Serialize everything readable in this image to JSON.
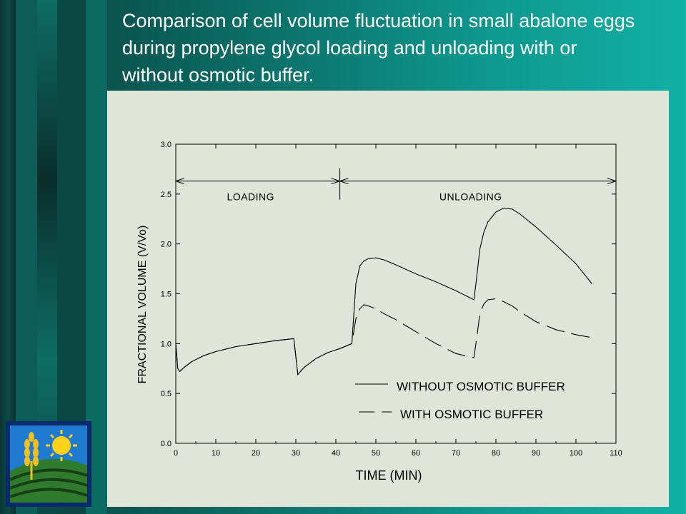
{
  "slide": {
    "title": "Comparison of cell volume fluctuation in small abalone eggs during propylene glycol loading and unloading with or without osmotic buffer."
  },
  "logo": {
    "icon": "agriculture-logo-icon"
  },
  "colors": {
    "background_dark": "#0d3d3a",
    "background_light": "#12b0a5",
    "panel": "#dfe5d9",
    "ink": "#000000"
  },
  "chart_data": {
    "type": "line",
    "title": "",
    "xlabel": "TIME (MIN)",
    "ylabel": "FRACTIONAL VOLUME  (V/Vo)",
    "xlim": [
      0,
      110
    ],
    "ylim": [
      0,
      3.0
    ],
    "xticks": [
      0,
      10,
      20,
      30,
      40,
      50,
      60,
      70,
      80,
      90,
      100,
      110
    ],
    "yticks": [
      "0.0",
      "0.5",
      "1.0",
      "1.5",
      "2.0",
      "2.5",
      "3.0"
    ],
    "grid": false,
    "legend_position": "bottom-right",
    "phases": [
      {
        "label": "LOADING",
        "start": 0,
        "end": 41
      },
      {
        "label": "UNLOADING",
        "start": 41,
        "end": 110
      }
    ],
    "series": [
      {
        "name": "WITHOUT OSMOTIC BUFFER",
        "style": "solid",
        "x": [
          0,
          0.5,
          1,
          2,
          4,
          7,
          10,
          15,
          20,
          25,
          29.5,
          30.5,
          32,
          35,
          38,
          41,
          44,
          45,
          46,
          47,
          48,
          50,
          52,
          55,
          60,
          65,
          70,
          74.5,
          75,
          76,
          77,
          78,
          80,
          82,
          84,
          86,
          90,
          95,
          100,
          104
        ],
        "y": [
          1.0,
          0.75,
          0.72,
          0.76,
          0.82,
          0.88,
          0.92,
          0.97,
          1.0,
          1.03,
          1.05,
          0.69,
          0.76,
          0.85,
          0.91,
          0.95,
          1.0,
          1.6,
          1.78,
          1.83,
          1.85,
          1.86,
          1.84,
          1.79,
          1.7,
          1.62,
          1.53,
          1.44,
          1.6,
          1.95,
          2.12,
          2.22,
          2.32,
          2.36,
          2.35,
          2.3,
          2.17,
          1.99,
          1.8,
          1.6
        ]
      },
      {
        "name": "WITH OSMOTIC BUFFER",
        "style": "dashed",
        "x": [
          0,
          0.5,
          1,
          2,
          4,
          7,
          10,
          15,
          20,
          25,
          29.5,
          30.5,
          32,
          35,
          38,
          41,
          44,
          45,
          46,
          47,
          48,
          50,
          52,
          55,
          60,
          65,
          70,
          74.5,
          75,
          76,
          77,
          78,
          80,
          82,
          84,
          86,
          90,
          95,
          100,
          104
        ],
        "y": [
          1.0,
          0.75,
          0.72,
          0.76,
          0.82,
          0.88,
          0.92,
          0.97,
          1.0,
          1.03,
          1.05,
          0.69,
          0.76,
          0.85,
          0.91,
          0.95,
          1.0,
          1.25,
          1.35,
          1.39,
          1.38,
          1.35,
          1.3,
          1.24,
          1.12,
          1.0,
          0.9,
          0.86,
          1.0,
          1.3,
          1.4,
          1.44,
          1.45,
          1.42,
          1.38,
          1.32,
          1.22,
          1.14,
          1.09,
          1.06
        ]
      }
    ]
  }
}
